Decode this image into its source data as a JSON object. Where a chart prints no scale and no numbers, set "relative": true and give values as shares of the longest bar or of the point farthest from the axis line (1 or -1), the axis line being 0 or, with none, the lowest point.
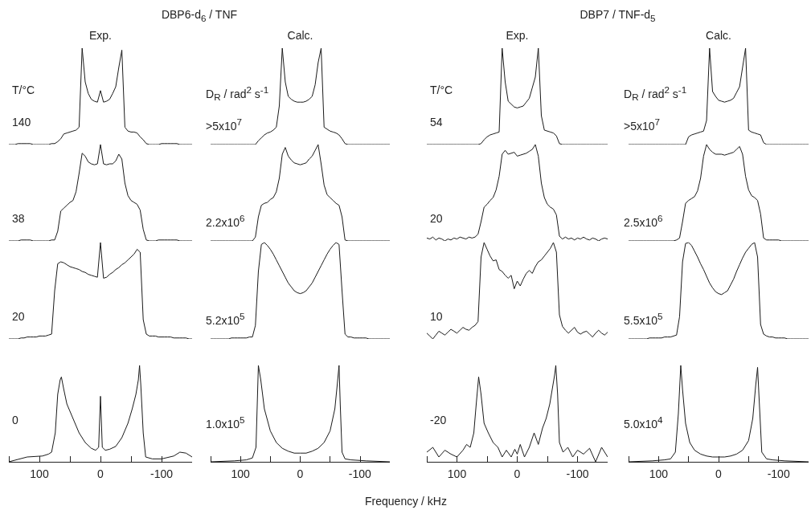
{
  "chart_data": [
    {
      "type": "line",
      "title": "DBP6-d$_{6}$ / TNF",
      "subtitle": "Exp.",
      "annotations": [
        "T/°C",
        "140"
      ],
      "relative": true,
      "tick_labels": false,
      "categories": [
        null,
        null,
        null,
        null,
        null,
        null,
        null,
        null,
        null,
        null,
        null,
        null,
        null,
        null,
        null,
        null,
        null,
        null,
        null,
        null,
        null,
        null,
        null,
        null,
        null,
        null,
        null,
        null,
        null,
        null,
        null,
        null,
        null,
        null,
        null,
        null,
        null,
        null,
        null,
        null,
        null,
        null,
        null,
        null,
        null,
        null,
        null,
        null,
        null,
        null,
        null,
        null,
        null,
        null,
        null,
        null,
        null,
        null,
        null,
        null,
        null
      ],
      "series": [
        {
          "color": "#1a1a1a",
          "values": [
            0,
            0,
            0,
            0.01,
            0.01,
            0.01,
            0.01,
            0.01,
            0,
            0,
            0,
            0,
            0,
            0,
            0.01,
            0.01,
            0.03,
            0.06,
            0.11,
            0.12,
            0.13,
            0.14,
            0.15,
            0.18,
            1,
            0.65,
            0.53,
            0.47,
            0.45,
            0.44,
            0.56,
            0.44,
            0.45,
            0.47,
            0.53,
            0.6,
            0.8,
            0.98,
            0.18,
            0.14,
            0.13,
            0.13,
            0.12,
            0.08,
            0.05,
            0.01,
            0,
            0,
            0,
            0,
            0.01,
            0.01,
            0.01,
            0.01,
            0.01,
            0.01,
            0,
            0,
            0,
            0,
            0
          ]
        }
      ]
    },
    {
      "type": "line",
      "annotations": [
        "38"
      ],
      "relative": true,
      "tick_labels": false,
      "categories": [
        null,
        null,
        null,
        null,
        null,
        null,
        null,
        null,
        null,
        null,
        null,
        null,
        null,
        null,
        null,
        null,
        null,
        null,
        null,
        null,
        null,
        null,
        null,
        null,
        null,
        null,
        null,
        null,
        null,
        null,
        null,
        null,
        null,
        null,
        null,
        null,
        null,
        null,
        null,
        null,
        null,
        null,
        null,
        null,
        null,
        null,
        null,
        null,
        null,
        null,
        null,
        null,
        null,
        null,
        null,
        null,
        null,
        null,
        null,
        null,
        null
      ],
      "series": [
        {
          "color": "#1a1a1a",
          "values": [
            0,
            0,
            0,
            0,
            0.01,
            0.01,
            0.01,
            0.01,
            0,
            0,
            0,
            0,
            0,
            0,
            0.01,
            0.01,
            0.1,
            0.31,
            0.34,
            0.37,
            0.4,
            0.42,
            0.51,
            0.7,
            0.91,
            0.88,
            0.82,
            0.8,
            0.79,
            0.8,
            1,
            0.8,
            0.79,
            0.8,
            0.8,
            0.83,
            0.9,
            0.85,
            0.6,
            0.47,
            0.42,
            0.4,
            0.38,
            0.32,
            0.12,
            0.01,
            0,
            0,
            0,
            0.01,
            0.01,
            0.01,
            0.01,
            0.01,
            0.01,
            0.01,
            0,
            0,
            0,
            0,
            0
          ]
        }
      ]
    },
    {
      "type": "line",
      "annotations": [
        "20"
      ],
      "relative": true,
      "tick_labels": false,
      "categories": [
        null,
        null,
        null,
        null,
        null,
        null,
        null,
        null,
        null,
        null,
        null,
        null,
        null,
        null,
        null,
        null,
        null,
        null,
        null,
        null,
        null,
        null,
        null,
        null,
        null,
        null,
        null,
        null,
        null,
        null,
        null,
        null,
        null,
        null,
        null,
        null,
        null,
        null,
        null,
        null,
        null,
        null,
        null,
        null,
        null,
        null,
        null,
        null,
        null,
        null,
        null,
        null,
        null,
        null,
        null,
        null,
        null,
        null,
        null,
        null,
        null
      ],
      "series": [
        {
          "color": "#1a1a1a",
          "values": [
            0,
            0,
            0,
            0,
            0.01,
            0.01,
            0.02,
            0.02,
            0.02,
            0.02,
            0.03,
            0.03,
            0.03,
            0.04,
            0.05,
            0.5,
            0.78,
            0.8,
            0.79,
            0.77,
            0.75,
            0.74,
            0.73,
            0.72,
            0.7,
            0.69,
            0.67,
            0.66,
            0.65,
            0.64,
            1,
            0.63,
            0.64,
            0.67,
            0.69,
            0.72,
            0.74,
            0.77,
            0.79,
            0.82,
            0.85,
            0.88,
            0.93,
            0.9,
            0.2,
            0.05,
            0.03,
            0.03,
            0.03,
            0.02,
            0.02,
            0.02,
            0.02,
            0.02,
            0.01,
            0.01,
            0.01,
            0.01,
            0.01,
            0,
            0
          ]
        }
      ]
    },
    {
      "type": "line",
      "annotations": [
        "0"
      ],
      "relative": true,
      "tick_labels": "x",
      "xlim": [
        150,
        -150
      ],
      "xticks": [
        {
          "value": 150,
          "label": null
        },
        100,
        {
          "value": 50,
          "label": null
        },
        0,
        {
          "value": -50,
          "label": null
        },
        -100,
        {
          "value": -150,
          "label": null
        }
      ],
      "x": [
        150,
        120,
        95,
        85,
        80,
        74,
        70,
        66,
        64,
        60,
        55,
        45,
        35,
        25,
        15,
        8,
        3,
        0,
        -3,
        -8,
        -15,
        -25,
        -35,
        -45,
        -52,
        -58,
        -62,
        -64,
        -66,
        -70,
        -74,
        -85,
        -100,
        -120,
        -130,
        -140,
        -150
      ],
      "series": [
        {
          "color": "#1a1a1a",
          "values": [
            0,
            0.05,
            0.06,
            0.08,
            0.1,
            0.3,
            0.7,
            0.85,
            0.88,
            0.75,
            0.6,
            0.45,
            0.3,
            0.2,
            0.14,
            0.12,
            0.15,
            0.68,
            0.15,
            0.12,
            0.13,
            0.16,
            0.25,
            0.4,
            0.55,
            0.7,
            0.85,
            1,
            0.8,
            0.3,
            0.05,
            0.03,
            0.03,
            0.06,
            0.1,
            0.09,
            0.05
          ]
        }
      ]
    },
    {
      "type": "line",
      "subtitle": "Calc.",
      "annotations": [
        "D$_{R}$ / rad$^{2}$ s$^{-1}$",
        ">5x10$^{7}$"
      ],
      "relative": true,
      "tick_labels": false,
      "categories": [
        null,
        null,
        null,
        null,
        null,
        null,
        null,
        null,
        null,
        null,
        null,
        null,
        null,
        null,
        null,
        null,
        null,
        null,
        null,
        null,
        null,
        null,
        null,
        null,
        null,
        null,
        null,
        null,
        null,
        null,
        null,
        null,
        null,
        null,
        null,
        null,
        null,
        null,
        null,
        null,
        null,
        null,
        null,
        null,
        null,
        null,
        null,
        null,
        null,
        null,
        null,
        null,
        null,
        null,
        null,
        null,
        null,
        null,
        null,
        null,
        null
      ],
      "series": [
        {
          "color": "#1a1a1a",
          "values": [
            0,
            0,
            0,
            0,
            0,
            0,
            0,
            0,
            0,
            0,
            0,
            0,
            0,
            0,
            0,
            0,
            0.04,
            0.07,
            0.1,
            0.12,
            0.13,
            0.15,
            0.18,
            0.4,
            1,
            0.65,
            0.5,
            0.47,
            0.45,
            0.44,
            0.44,
            0.44,
            0.45,
            0.47,
            0.5,
            0.62,
            0.85,
            1,
            0.18,
            0.16,
            0.14,
            0.13,
            0.12,
            0.1,
            0.06,
            0.01,
            0,
            0,
            0,
            0,
            0,
            0,
            0,
            0,
            0,
            0,
            0,
            0,
            0,
            0,
            0
          ]
        }
      ]
    },
    {
      "type": "line",
      "annotations": [
        "2.2x10$^{6}$"
      ],
      "relative": true,
      "tick_labels": false,
      "categories": [
        null,
        null,
        null,
        null,
        null,
        null,
        null,
        null,
        null,
        null,
        null,
        null,
        null,
        null,
        null,
        null,
        null,
        null,
        null,
        null,
        null,
        null,
        null,
        null,
        null,
        null,
        null,
        null,
        null,
        null,
        null,
        null,
        null,
        null,
        null,
        null,
        null,
        null,
        null,
        null,
        null,
        null,
        null,
        null,
        null,
        null,
        null,
        null,
        null,
        null,
        null,
        null,
        null,
        null,
        null,
        null,
        null,
        null,
        null,
        null,
        null
      ],
      "series": [
        {
          "color": "#1a1a1a",
          "values": [
            0,
            0,
            0,
            0,
            0,
            0,
            0,
            0,
            0,
            0,
            0,
            0,
            0,
            0,
            0,
            0.04,
            0.25,
            0.37,
            0.39,
            0.4,
            0.43,
            0.45,
            0.51,
            0.65,
            0.9,
            0.97,
            0.88,
            0.84,
            0.81,
            0.8,
            0.79,
            0.8,
            0.81,
            0.85,
            0.88,
            0.94,
            1,
            0.8,
            0.58,
            0.48,
            0.45,
            0.42,
            0.39,
            0.37,
            0.25,
            0.01,
            0,
            0,
            0,
            0,
            0,
            0,
            0,
            0,
            0,
            0,
            0,
            0,
            0,
            0,
            0
          ]
        }
      ]
    },
    {
      "type": "line",
      "annotations": [
        "5.2x10$^{5}$"
      ],
      "relative": true,
      "tick_labels": false,
      "categories": [
        null,
        null,
        null,
        null,
        null,
        null,
        null,
        null,
        null,
        null,
        null,
        null,
        null,
        null,
        null,
        null,
        null,
        null,
        null,
        null,
        null,
        null,
        null,
        null,
        null,
        null,
        null,
        null,
        null,
        null,
        null,
        null,
        null,
        null,
        null,
        null,
        null,
        null,
        null,
        null,
        null,
        null,
        null,
        null,
        null,
        null,
        null,
        null,
        null,
        null,
        null,
        null,
        null,
        null,
        null,
        null,
        null,
        null,
        null,
        null,
        null
      ],
      "series": [
        {
          "color": "#1a1a1a",
          "values": [
            0,
            0,
            0,
            0,
            0,
            0,
            0,
            0.01,
            0.01,
            0.01,
            0.01,
            0.01,
            0.01,
            0.02,
            0.02,
            0.14,
            0.7,
            0.98,
            1,
            0.97,
            0.93,
            0.88,
            0.82,
            0.76,
            0.7,
            0.64,
            0.58,
            0.54,
            0.5,
            0.48,
            0.47,
            0.48,
            0.5,
            0.54,
            0.58,
            0.64,
            0.7,
            0.76,
            0.82,
            0.88,
            0.93,
            0.97,
            1,
            0.98,
            0.5,
            0.05,
            0.02,
            0.02,
            0.01,
            0.01,
            0.01,
            0.01,
            0.01,
            0,
            0,
            0,
            0,
            0,
            0,
            0,
            0
          ]
        }
      ]
    },
    {
      "type": "line",
      "annotations": [
        "1.0x10$^{5}$"
      ],
      "relative": true,
      "tick_labels": "x",
      "xlim": [
        150,
        -150
      ],
      "xticks": [
        {
          "value": 150,
          "label": null
        },
        100,
        {
          "value": 50,
          "label": null
        },
        0,
        {
          "value": -50,
          "label": null
        },
        -100,
        {
          "value": -150,
          "label": null
        }
      ],
      "xlabel": "Frequency / kHz",
      "x": [
        150,
        110,
        90,
        80,
        74,
        70,
        66,
        60,
        50,
        40,
        30,
        20,
        10,
        0,
        -10,
        -20,
        -30,
        -40,
        -50,
        -58,
        -62,
        -65,
        -67,
        -70,
        -75,
        -85,
        -110,
        -150
      ],
      "series": [
        {
          "color": "#1a1a1a",
          "values": [
            0,
            0.01,
            0.02,
            0.04,
            0.15,
            1,
            0.85,
            0.55,
            0.32,
            0.2,
            0.14,
            0.11,
            0.09,
            0.09,
            0.09,
            0.11,
            0.14,
            0.2,
            0.32,
            0.55,
            0.8,
            1,
            0.6,
            0.1,
            0.03,
            0.02,
            0.01,
            0
          ]
        }
      ]
    },
    {
      "type": "line",
      "title": "DBP7 / TNF-d$_{5}$",
      "subtitle": "Exp.",
      "annotations": [
        "T/°C",
        "54"
      ],
      "relative": true,
      "tick_labels": false,
      "categories": [
        null,
        null,
        null,
        null,
        null,
        null,
        null,
        null,
        null,
        null,
        null,
        null,
        null,
        null,
        null,
        null,
        null,
        null,
        null,
        null,
        null,
        null,
        null,
        null,
        null,
        null,
        null,
        null,
        null,
        null,
        null,
        null,
        null,
        null,
        null,
        null,
        null,
        null,
        null,
        null,
        null,
        null,
        null,
        null,
        null,
        null,
        null,
        null,
        null,
        null,
        null,
        null,
        null,
        null,
        null,
        null,
        null,
        null,
        null,
        null,
        null
      ],
      "series": [
        {
          "color": "#1a1a1a",
          "values": [
            0,
            0,
            0,
            0,
            0,
            0,
            0,
            0,
            0,
            0,
            0,
            0,
            0,
            0,
            0,
            0,
            0,
            0,
            0.01,
            0.05,
            0.08,
            0.1,
            0.11,
            0.12,
            0.13,
            1,
            0.65,
            0.45,
            0.42,
            0.39,
            0.38,
            0.39,
            0.4,
            0.44,
            0.48,
            0.59,
            0.7,
            1,
            0.3,
            0.15,
            0.14,
            0.13,
            0.12,
            0.09,
            0.01,
            0,
            0,
            0,
            0,
            0,
            0,
            0,
            0,
            0,
            0,
            0,
            0,
            0,
            0,
            0,
            0
          ]
        }
      ]
    },
    {
      "type": "line",
      "annotations": [
        "20"
      ],
      "relative": true,
      "tick_labels": false,
      "categories": [
        null,
        null,
        null,
        null,
        null,
        null,
        null,
        null,
        null,
        null,
        null,
        null,
        null,
        null,
        null,
        null,
        null,
        null,
        null,
        null,
        null,
        null,
        null,
        null,
        null,
        null,
        null,
        null,
        null,
        null,
        null,
        null,
        null,
        null,
        null,
        null,
        null,
        null,
        null,
        null,
        null,
        null,
        null,
        null,
        null,
        null,
        null,
        null,
        null,
        null,
        null,
        null,
        null,
        null,
        null,
        null,
        null,
        null,
        null,
        null,
        null
      ],
      "series": [
        {
          "color": "#1a1a1a",
          "values": [
            0.03,
            0.02,
            0.04,
            0.01,
            0.03,
            0.02,
            0,
            0.02,
            0.01,
            0.03,
            0.02,
            0.04,
            0.03,
            0.02,
            0.04,
            0.03,
            0.04,
            0.07,
            0.2,
            0.35,
            0.38,
            0.42,
            0.45,
            0.53,
            0.67,
            0.9,
            0.94,
            0.9,
            0.91,
            0.92,
            0.88,
            0.89,
            0.9,
            0.91,
            0.93,
            0.95,
            1,
            0.88,
            0.6,
            0.45,
            0.38,
            0.35,
            0.33,
            0.27,
            0.05,
            0.02,
            0.04,
            0.02,
            0.03,
            0.01,
            0.03,
            0.02,
            0.04,
            0.02,
            0.01,
            0.03,
            0.02,
            0,
            0.02,
            0.03,
            0.02
          ]
        }
      ]
    },
    {
      "type": "line",
      "annotations": [
        "10"
      ],
      "relative": true,
      "tick_labels": false,
      "categories": [
        null,
        null,
        null,
        null,
        null,
        null,
        null,
        null,
        null,
        null,
        null,
        null,
        null,
        null,
        null,
        null,
        null,
        null,
        null,
        null,
        null,
        null,
        null,
        null,
        null,
        null,
        null,
        null,
        null,
        null,
        null,
        null,
        null,
        null,
        null,
        null,
        null,
        null,
        null,
        null,
        null,
        null,
        null,
        null,
        null,
        null,
        null,
        null,
        null,
        null,
        null,
        null,
        null,
        null,
        null,
        null,
        null,
        null,
        null,
        null,
        null
      ],
      "series": [
        {
          "color": "#1a1a1a",
          "values": [
            0.06,
            0.03,
            0,
            0.04,
            0.08,
            0.06,
            0.04,
            0.07,
            0.1,
            0.08,
            0.06,
            0.09,
            0.12,
            0.1,
            0.09,
            0.12,
            0.14,
            0.18,
            0.85,
            1,
            0.93,
            0.86,
            0.81,
            0.82,
            0.72,
            0.7,
            0.66,
            0.63,
            0.66,
            0.52,
            0.6,
            0.55,
            0.62,
            0.68,
            0.71,
            0.68,
            0.75,
            0.8,
            0.82,
            0.86,
            0.9,
            0.94,
            1,
            0.9,
            0.25,
            0.13,
            0.09,
            0.06,
            0.09,
            0.12,
            0.07,
            0.05,
            0.07,
            0.08,
            0.05,
            0.02,
            0.06,
            0.09,
            0.06,
            0.04,
            0.07
          ]
        }
      ]
    },
    {
      "type": "line",
      "annotations": [
        "-20"
      ],
      "relative": true,
      "tick_labels": "x",
      "xlim": [
        150,
        -150
      ],
      "xticks": [
        {
          "value": 150,
          "label": null
        },
        100,
        {
          "value": 50,
          "label": null
        },
        0,
        {
          "value": -50,
          "label": null
        },
        -100,
        {
          "value": -150,
          "label": null
        }
      ],
      "x": [
        150,
        140,
        130,
        120,
        110,
        100,
        90,
        84,
        78,
        72,
        68,
        64,
        60,
        55,
        48,
        40,
        32,
        25,
        18,
        10,
        4,
        0,
        -5,
        -12,
        -20,
        -28,
        -35,
        -42,
        -48,
        -54,
        -58,
        -62,
        -64,
        -67,
        -70,
        -76,
        -84,
        -92,
        -100,
        -110,
        -120,
        -130,
        -140,
        -150
      ],
      "series": [
        {
          "color": "#1a1a1a",
          "values": [
            0.1,
            0.15,
            0.05,
            0.12,
            0.08,
            0.05,
            0.12,
            0.18,
            0.15,
            0.3,
            0.6,
            0.88,
            0.7,
            0.4,
            0.3,
            0.2,
            0.15,
            0.05,
            0.12,
            0.05,
            0.13,
            0.08,
            0.18,
            0.05,
            0.15,
            0.3,
            0.18,
            0.35,
            0.45,
            0.6,
            0.75,
            0.9,
            1,
            0.7,
            0.2,
            0.1,
            0.15,
            0.05,
            0.12,
            0.08,
            0.14,
            0,
            0.15,
            0.05
          ]
        }
      ]
    },
    {
      "type": "line",
      "subtitle": "Calc.",
      "annotations": [
        "D$_{R}$ / rad$^{2}$ s$^{-1}$",
        ">5x10$^{7}$"
      ],
      "relative": true,
      "tick_labels": false,
      "categories": [
        null,
        null,
        null,
        null,
        null,
        null,
        null,
        null,
        null,
        null,
        null,
        null,
        null,
        null,
        null,
        null,
        null,
        null,
        null,
        null,
        null,
        null,
        null,
        null,
        null,
        null,
        null,
        null,
        null,
        null,
        null,
        null,
        null,
        null,
        null,
        null,
        null,
        null,
        null,
        null,
        null,
        null,
        null,
        null,
        null,
        null,
        null,
        null,
        null,
        null,
        null,
        null,
        null,
        null,
        null,
        null,
        null,
        null,
        null,
        null,
        null
      ],
      "series": [
        {
          "color": "#1a1a1a",
          "values": [
            0,
            0,
            0,
            0,
            0,
            0,
            0,
            0,
            0,
            0,
            0,
            0,
            0,
            0,
            0,
            0,
            0,
            0,
            0,
            0,
            0.08,
            0.1,
            0.11,
            0.12,
            0.13,
            0.14,
            0.25,
            1,
            0.55,
            0.5,
            0.46,
            0.45,
            0.44,
            0.45,
            0.46,
            0.48,
            0.54,
            0.6,
            0.8,
            1,
            0.15,
            0.13,
            0.12,
            0.11,
            0.1,
            0.02,
            0,
            0,
            0,
            0,
            0,
            0,
            0,
            0,
            0,
            0,
            0,
            0,
            0,
            0,
            0
          ]
        }
      ]
    },
    {
      "type": "line",
      "annotations": [
        "2.5x10$^{6}$"
      ],
      "relative": true,
      "tick_labels": false,
      "categories": [
        null,
        null,
        null,
        null,
        null,
        null,
        null,
        null,
        null,
        null,
        null,
        null,
        null,
        null,
        null,
        null,
        null,
        null,
        null,
        null,
        null,
        null,
        null,
        null,
        null,
        null,
        null,
        null,
        null,
        null,
        null,
        null,
        null,
        null,
        null,
        null,
        null,
        null,
        null,
        null,
        null,
        null,
        null,
        null,
        null,
        null,
        null,
        null,
        null,
        null,
        null,
        null,
        null,
        null,
        null,
        null,
        null,
        null,
        null,
        null,
        null
      ],
      "series": [
        {
          "color": "#1a1a1a",
          "values": [
            0,
            0,
            0,
            0,
            0,
            0,
            0,
            0,
            0,
            0,
            0,
            0,
            0,
            0,
            0,
            0,
            0.01,
            0.03,
            0.2,
            0.39,
            0.42,
            0.44,
            0.46,
            0.52,
            0.65,
            0.88,
            1,
            0.95,
            0.92,
            0.9,
            0.9,
            0.9,
            0.89,
            0.9,
            0.91,
            0.92,
            0.95,
            0.98,
            0.9,
            0.67,
            0.53,
            0.47,
            0.45,
            0.42,
            0.28,
            0.03,
            0.01,
            0.01,
            0.01,
            0.01,
            0.01,
            0,
            0,
            0,
            0,
            0,
            0,
            0,
            0,
            0,
            0
          ]
        }
      ]
    },
    {
      "type": "line",
      "annotations": [
        "5.5x10$^{5}$"
      ],
      "relative": true,
      "tick_labels": false,
      "categories": [
        null,
        null,
        null,
        null,
        null,
        null,
        null,
        null,
        null,
        null,
        null,
        null,
        null,
        null,
        null,
        null,
        null,
        null,
        null,
        null,
        null,
        null,
        null,
        null,
        null,
        null,
        null,
        null,
        null,
        null,
        null,
        null,
        null,
        null,
        null,
        null,
        null,
        null,
        null,
        null,
        null,
        null,
        null,
        null,
        null,
        null,
        null,
        null,
        null,
        null,
        null,
        null,
        null,
        null,
        null,
        null,
        null,
        null,
        null,
        null,
        null
      ],
      "series": [
        {
          "color": "#1a1a1a",
          "values": [
            0,
            0,
            0,
            0,
            0,
            0,
            0,
            0.01,
            0.01,
            0.01,
            0.01,
            0.01,
            0.02,
            0.02,
            0.02,
            0.03,
            0.04,
            0.23,
            0.8,
            0.99,
            1,
            0.97,
            0.91,
            0.85,
            0.78,
            0.72,
            0.65,
            0.58,
            0.53,
            0.49,
            0.47,
            0.46,
            0.48,
            0.5,
            0.56,
            0.62,
            0.7,
            0.77,
            0.84,
            0.9,
            0.94,
            0.98,
            1,
            0.85,
            0.15,
            0.05,
            0.03,
            0.02,
            0.02,
            0.01,
            0.01,
            0.01,
            0.01,
            0,
            0,
            0,
            0,
            0,
            0,
            0,
            0
          ]
        }
      ]
    },
    {
      "type": "line",
      "annotations": [
        "5.0x10$^{4}$"
      ],
      "relative": true,
      "tick_labels": "x",
      "xlim": [
        150,
        -150
      ],
      "xticks": [
        {
          "value": 150,
          "label": null
        },
        100,
        {
          "value": 50,
          "label": null
        },
        0,
        {
          "value": -50,
          "label": null
        },
        -100,
        {
          "value": -150,
          "label": null
        }
      ],
      "x": [
        150,
        110,
        90,
        80,
        72,
        67,
        63,
        60,
        55,
        48,
        40,
        30,
        20,
        10,
        0,
        -10,
        -20,
        -30,
        -40,
        -50,
        -57,
        -62,
        -65,
        -68,
        -72,
        -80,
        -90,
        -110,
        -150
      ],
      "series": [
        {
          "color": "#1a1a1a",
          "values": [
            0,
            0.01,
            0.02,
            0.03,
            0.1,
            0.5,
            1,
            0.75,
            0.4,
            0.2,
            0.12,
            0.08,
            0.06,
            0.05,
            0.05,
            0.05,
            0.06,
            0.08,
            0.12,
            0.22,
            0.45,
            0.8,
            0.98,
            0.6,
            0.1,
            0.03,
            0.02,
            0.01,
            0
          ]
        }
      ]
    }
  ]
}
